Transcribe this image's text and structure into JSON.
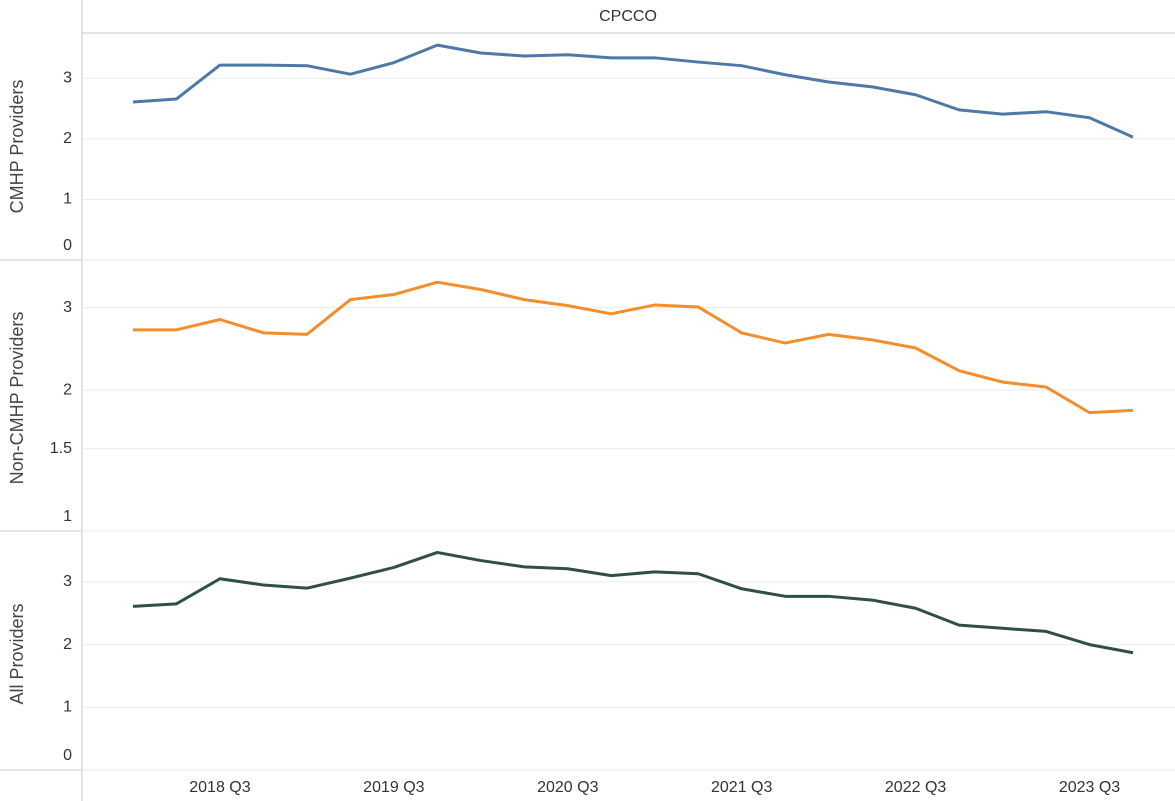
{
  "chart_data": {
    "type": "line",
    "title": "CPCCO",
    "categories": [
      null,
      null,
      "2018 Q3",
      null,
      null,
      null,
      "2019 Q3",
      null,
      null,
      null,
      "2020 Q3",
      null,
      null,
      null,
      "2021 Q3",
      null,
      null,
      null,
      "2022 Q3",
      null,
      null,
      null,
      "2023 Q3",
      null
    ],
    "grid": true,
    "series": [
      {
        "name": "CMHP Providers",
        "color": "#4e79a7",
        "log": false,
        "ylim": [
          0,
          3.75
        ],
        "yticks": [
          0,
          1,
          2,
          3
        ],
        "values": [
          2.61,
          2.66,
          3.22,
          3.22,
          3.21,
          3.07,
          3.26,
          3.55,
          3.42,
          3.37,
          3.39,
          3.34,
          3.34,
          3.27,
          3.21,
          3.06,
          2.94,
          2.86,
          2.73,
          2.48,
          2.41,
          2.45,
          2.35,
          2.03
        ]
      },
      {
        "name": "Non-CMHP Providers",
        "color": "#f28e2b",
        "log": true,
        "ylim": [
          1,
          3.7
        ],
        "yticks": [
          1,
          1.5,
          2,
          3
        ],
        "values": [
          2.69,
          2.69,
          2.83,
          2.65,
          2.63,
          3.12,
          3.2,
          3.4,
          3.28,
          3.12,
          3.03,
          2.91,
          3.04,
          3.01,
          2.65,
          2.52,
          2.63,
          2.56,
          2.46,
          2.2,
          2.08,
          2.03,
          1.79,
          1.81
        ]
      },
      {
        "name": "All Providers",
        "color": "#2f4f44",
        "log": false,
        "ylim": [
          0,
          3.7
        ],
        "yticks": [
          0,
          1,
          2,
          3
        ],
        "values": [
          2.61,
          2.65,
          3.05,
          2.95,
          2.9,
          3.06,
          3.23,
          3.47,
          3.34,
          3.24,
          3.21,
          3.1,
          3.16,
          3.13,
          2.89,
          2.77,
          2.77,
          2.71,
          2.58,
          2.31,
          2.26,
          2.21,
          2.0,
          1.87
        ]
      }
    ]
  }
}
